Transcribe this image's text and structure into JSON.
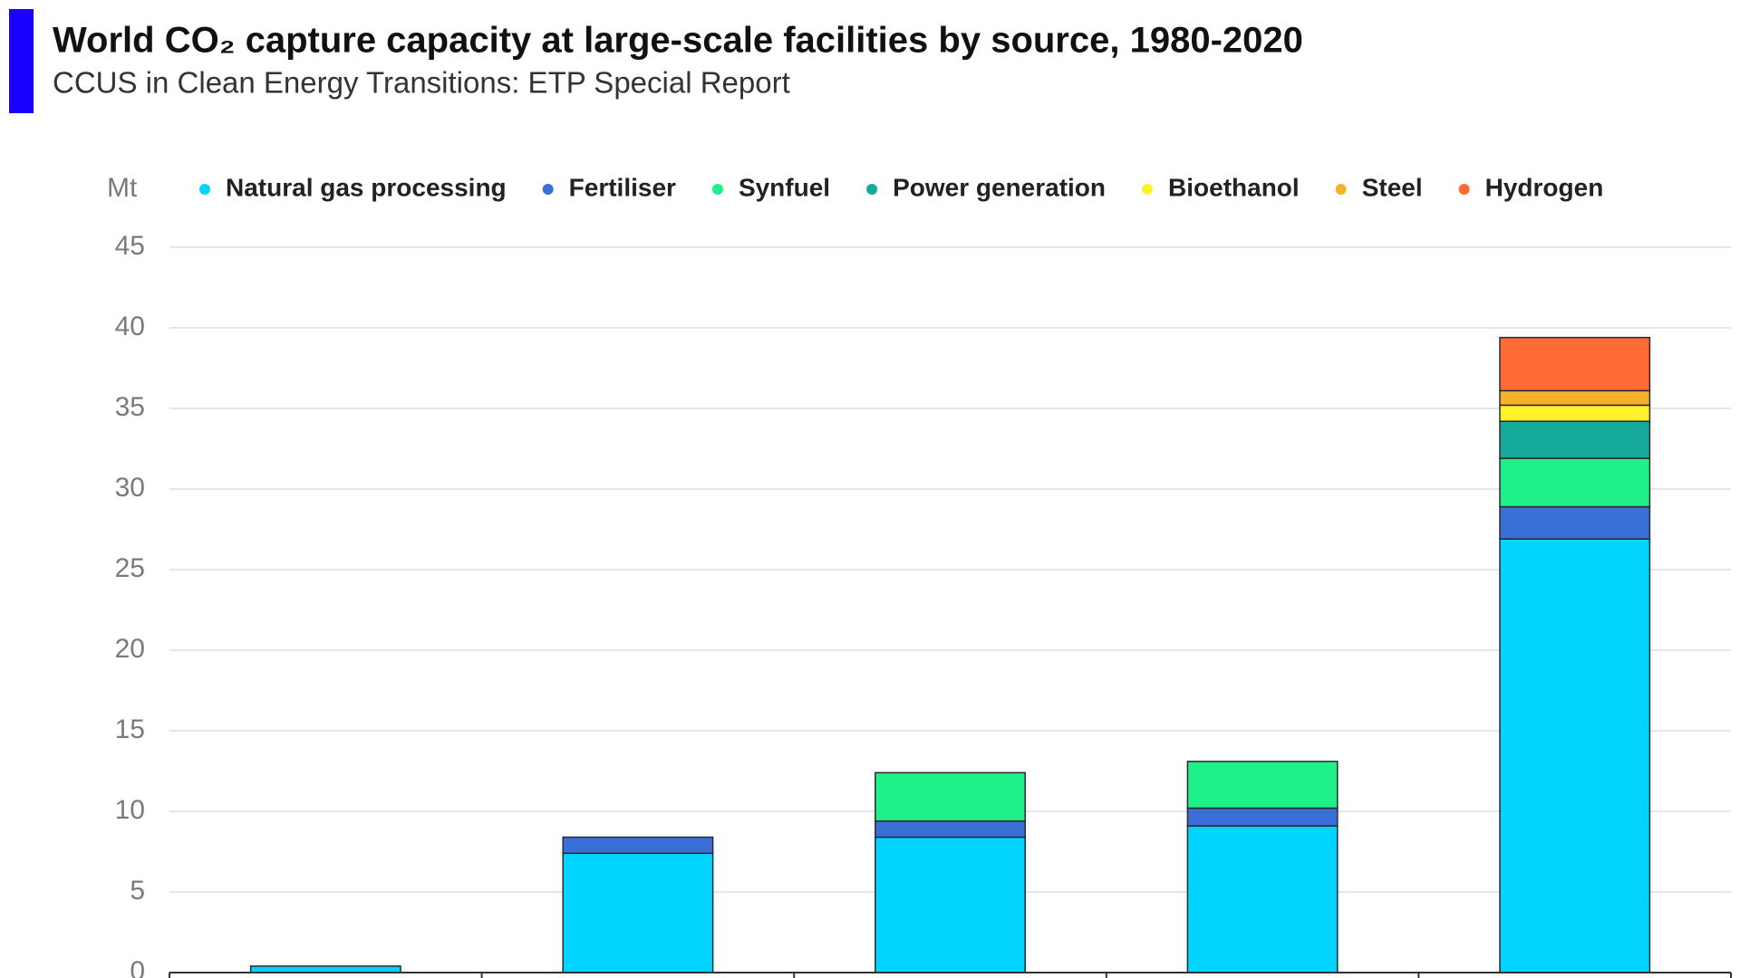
{
  "chart_data": {
    "type": "stacked_bar",
    "title": "World CO₂ capture capacity at large-scale facilities by source, 1980-2020",
    "subtitle": "CCUS in Clean Energy Transitions: ETP Special Report",
    "ylabel": "Mt",
    "categories": [
      null,
      null,
      null,
      null,
      null
    ],
    "series": [
      {
        "name": "Natural gas processing",
        "color": "#00d4ff",
        "values": [
          0.4,
          7.4,
          8.4,
          9.1,
          26.9
        ]
      },
      {
        "name": "Fertiliser",
        "color": "#3a6fd8",
        "values": [
          0,
          1.0,
          1.0,
          1.1,
          2.0
        ]
      },
      {
        "name": "Synfuel",
        "color": "#1ef08a",
        "values": [
          0,
          0,
          3.0,
          2.9,
          3.0
        ]
      },
      {
        "name": "Power generation",
        "color": "#14a99a",
        "values": [
          0,
          0,
          0,
          0,
          2.3
        ]
      },
      {
        "name": "Bioethanol",
        "color": "#fff22a",
        "values": [
          0,
          0,
          0,
          0,
          1.0
        ]
      },
      {
        "name": "Steel",
        "color": "#f7b12b",
        "values": [
          0,
          0,
          0,
          0,
          0.9
        ]
      },
      {
        "name": "Hydrogen",
        "color": "#ff6b35",
        "values": [
          0,
          0,
          0,
          0,
          3.3
        ]
      }
    ],
    "ylim": [
      0,
      45
    ],
    "yticks": [
      0,
      5,
      10,
      15,
      20,
      25,
      30,
      35,
      40,
      45
    ],
    "grid": true,
    "legend": "top"
  }
}
